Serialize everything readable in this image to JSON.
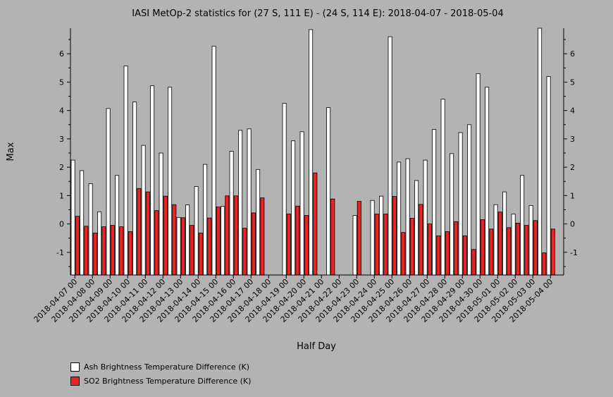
{
  "chart_data": {
    "type": "bar",
    "title": "IASI MetOp-2 statistics for (27 S, 111 E) - (24 S, 114 E): 2018-04-07 - 2018-05-04",
    "xlabel": "Half Day",
    "ylabel": "Max",
    "ylim": [
      -1.8,
      6.9
    ],
    "yticks": [
      -1,
      0,
      1,
      2,
      3,
      4,
      5,
      6
    ],
    "categories": [
      "2018-04-07 00",
      "2018-04-07 12",
      "2018-04-08 00",
      "2018-04-08 12",
      "2018-04-09 00",
      "2018-04-09 12",
      "2018-04-10 00",
      "2018-04-10 12",
      "2018-04-11 00",
      "2018-04-11 12",
      "2018-04-12 00",
      "2018-04-12 12",
      "2018-04-13 00",
      "2018-04-13 12",
      "2018-04-14 00",
      "2018-04-14 12",
      "2018-04-15 00",
      "2018-04-15 12",
      "2018-04-16 00",
      "2018-04-16 12",
      "2018-04-17 00",
      "2018-04-17 12",
      "2018-04-18 00",
      "2018-04-18 12",
      "2018-04-19 00",
      "2018-04-19 12",
      "2018-04-20 00",
      "2018-04-20 12",
      "2018-04-21 00",
      "2018-04-21 12",
      "2018-04-22 00",
      "2018-04-22 12",
      "2018-04-23 00",
      "2018-04-23 12",
      "2018-04-24 00",
      "2018-04-24 12",
      "2018-04-25 00",
      "2018-04-25 12",
      "2018-04-26 00",
      "2018-04-26 12",
      "2018-04-27 00",
      "2018-04-27 12",
      "2018-04-28 00",
      "2018-04-28 12",
      "2018-04-29 00",
      "2018-04-29 12",
      "2018-04-30 00",
      "2018-04-30 12",
      "2018-05-01 00",
      "2018-05-01 12",
      "2018-05-02 00",
      "2018-05-02 12",
      "2018-05-03 00",
      "2018-05-03 12",
      "2018-05-04 00",
      "2018-05-04 12"
    ],
    "tick_labels": [
      "2018-04-07 00",
      "2018-04-08 00",
      "2018-04-09 00",
      "2018-04-10 00",
      "2018-04-11 00",
      "2018-04-12 00",
      "2018-04-13 00",
      "2018-04-14 00",
      "2018-04-15 00",
      "2018-04-16 00",
      "2018-04-17 00",
      "2018-04-18 00",
      "2018-04-19 00",
      "2018-04-20 00",
      "2018-04-21 00",
      "2018-04-22 00",
      "2018-04-23 00",
      "2018-04-24 00",
      "2018-04-25 00",
      "2018-04-26 00",
      "2018-04-27 00",
      "2018-04-28 00",
      "2018-04-29 00",
      "2018-04-30 00",
      "2018-05-01 00",
      "2018-05-02 00",
      "2018-05-03 00",
      "2018-05-04 00"
    ],
    "series": [
      {
        "name": "Ash Brightness Temperature Difference (K)",
        "color": "#ffffff",
        "values": [
          2.25,
          1.88,
          1.42,
          0.43,
          4.07,
          1.71,
          5.57,
          4.3,
          2.77,
          4.87,
          2.5,
          4.82,
          0.23,
          0.67,
          1.32,
          2.1,
          6.27,
          0.62,
          2.56,
          3.3,
          3.35,
          1.92,
          null,
          null,
          4.25,
          2.93,
          3.25,
          6.85,
          null,
          4.1,
          null,
          null,
          0.3,
          null,
          0.83,
          0.98,
          6.6,
          2.18,
          2.3,
          1.53,
          2.25,
          3.33,
          4.4,
          2.48,
          3.22,
          3.5,
          5.3,
          4.82,
          0.68,
          1.13,
          0.35,
          1.71,
          0.65,
          6.9,
          5.2,
          null
        ]
      },
      {
        "name": "SO2 Brightness Temperature Difference (K)",
        "color": "#ee2222",
        "values": [
          0.27,
          -0.08,
          -0.32,
          -0.1,
          -0.05,
          -0.1,
          -0.27,
          1.25,
          1.13,
          0.47,
          0.98,
          0.68,
          0.22,
          -0.05,
          -0.32,
          0.21,
          0.6,
          0.99,
          0.99,
          -0.15,
          0.39,
          0.92,
          null,
          null,
          0.35,
          0.63,
          0.3,
          1.8,
          null,
          0.88,
          null,
          null,
          0.8,
          null,
          0.35,
          0.35,
          0.97,
          -0.3,
          0.2,
          0.69,
          0.0,
          -0.42,
          -0.27,
          0.08,
          -0.42,
          -0.9,
          0.15,
          -0.18,
          0.42,
          -0.13,
          0.03,
          -0.05,
          0.12,
          -1.02,
          -0.18,
          null
        ]
      }
    ],
    "legend_position": "bottom-left",
    "grid": false
  }
}
